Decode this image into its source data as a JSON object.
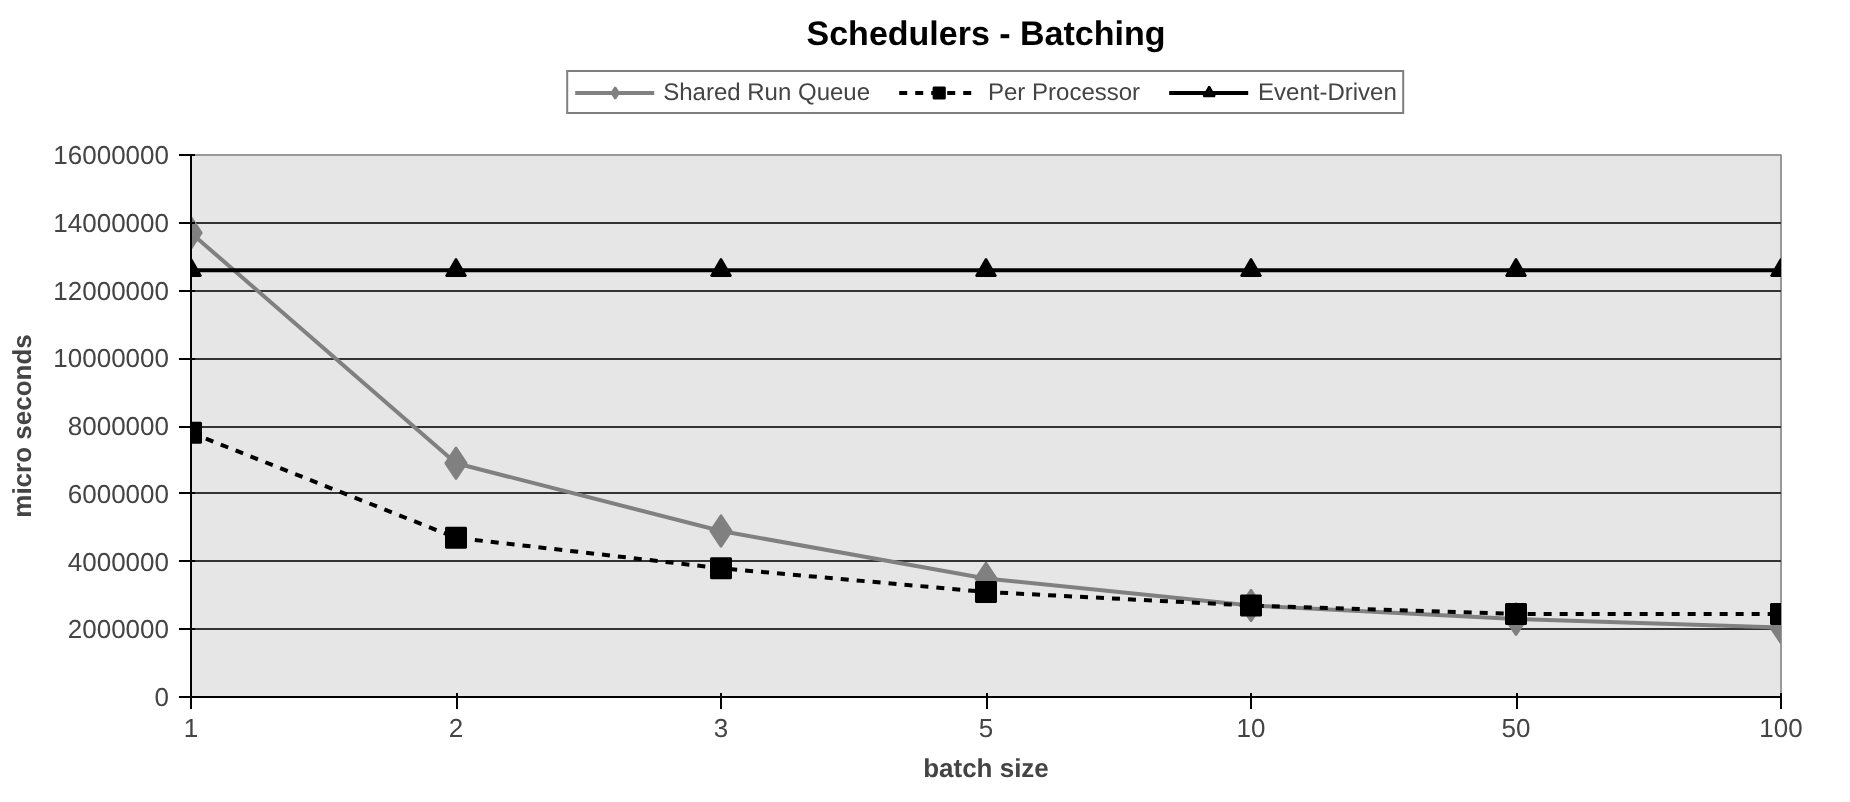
{
  "chart_data": {
    "type": "line",
    "title": "Schedulers - Batching",
    "xlabel": "batch size",
    "ylabel": "micro seconds",
    "categories": [
      "1",
      "2",
      "3",
      "5",
      "10",
      "50",
      "100"
    ],
    "ylim": [
      0,
      16000000
    ],
    "yticks": [
      0,
      2000000,
      4000000,
      6000000,
      8000000,
      10000000,
      12000000,
      14000000,
      16000000
    ],
    "grid": "y",
    "legend": "top",
    "series": [
      {
        "name": "Shared Run Queue",
        "color": "#808080",
        "marker": "diamond",
        "line_style": "solid",
        "values": [
          13700000,
          6900000,
          4900000,
          3500000,
          2700000,
          2300000,
          2050000
        ]
      },
      {
        "name": "Per Processor",
        "color": "#000000",
        "marker": "square",
        "line_style": "dotted",
        "values": [
          7800000,
          4700000,
          3800000,
          3100000,
          2700000,
          2450000,
          2450000
        ]
      },
      {
        "name": "Event-Driven",
        "color": "#000000",
        "marker": "triangle",
        "line_style": "solid",
        "values": [
          12600000,
          12600000,
          12600000,
          12600000,
          12600000,
          12600000,
          12600000
        ]
      }
    ]
  }
}
